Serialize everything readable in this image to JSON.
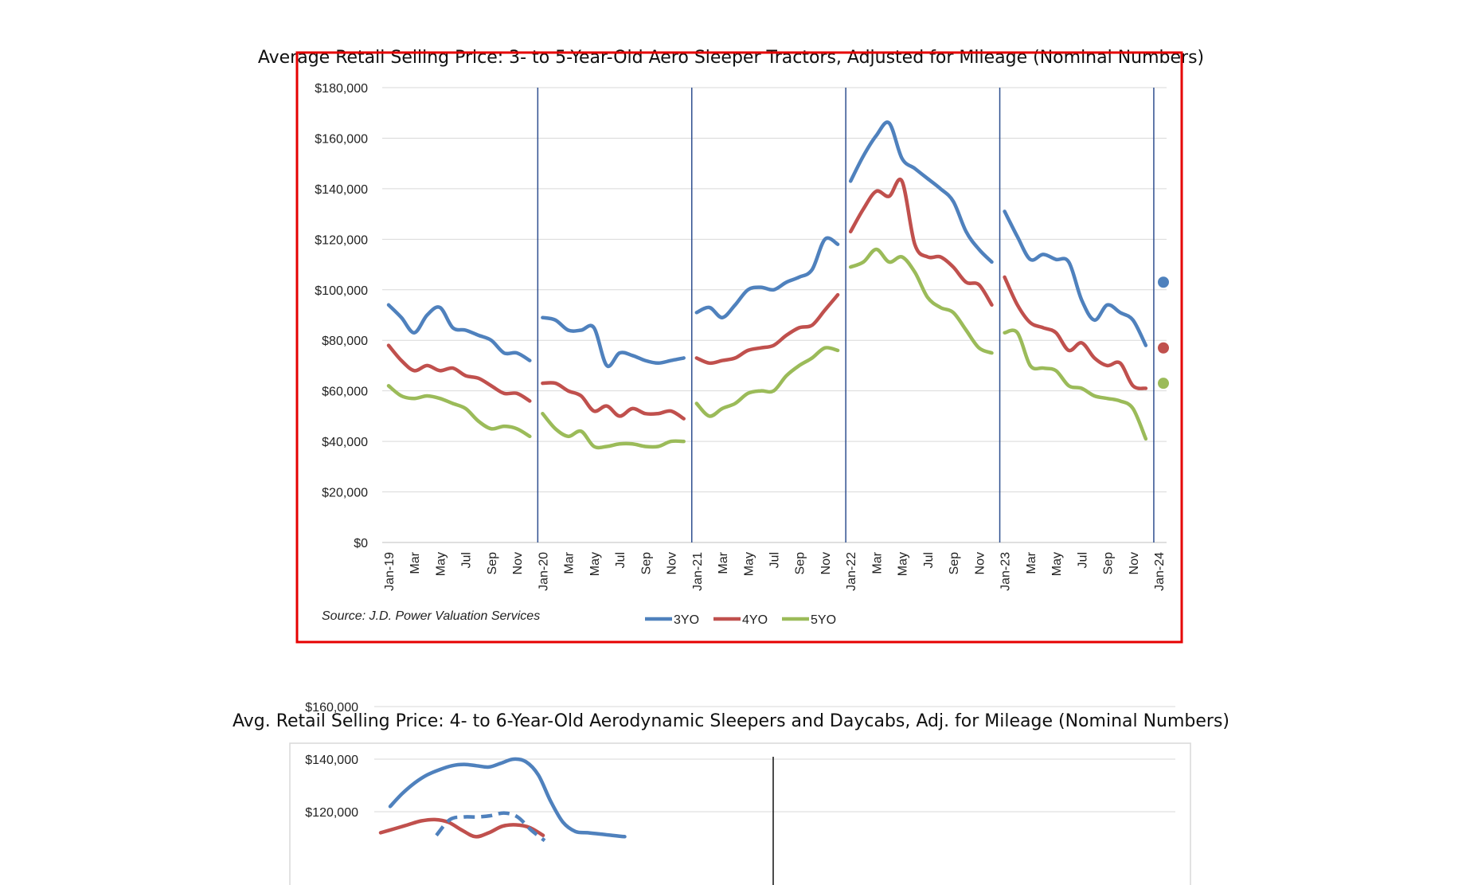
{
  "titles": {
    "chart1": "Average Retail Selling Price: 3- to 5-Year-Old Aero Sleeper Tractors, Adjusted for Mileage (Nominal Numbers)",
    "chart2": "Avg. Retail Selling Price: 4- to 6-Year-Old Aerodynamic Sleepers and Daycabs, Adj. for Mileage (Nominal Numbers)"
  },
  "colors": {
    "s3": "#4F81BD",
    "s4": "#C0504D",
    "s5": "#9BBB59",
    "frame": "#E60000",
    "divider": "#2F4F8F"
  },
  "chart_data": [
    {
      "type": "line",
      "title": "Average Retail Selling Price: 3- to 5-Year-Old Aero Sleeper Tractors, Adjusted for Mileage (Nominal Numbers)",
      "source": "Source: J.D. Power Valuation Services",
      "ylim": [
        0,
        180000
      ],
      "y_ticks": [
        "$0",
        "$20,000",
        "$40,000",
        "$60,000",
        "$80,000",
        "$100,000",
        "$120,000",
        "$140,000",
        "$160,000",
        "$180,000"
      ],
      "x_ticks": [
        "Jan-19",
        "Mar",
        "May",
        "Jul",
        "Sep",
        "Nov",
        "Jan-20",
        "Mar",
        "May",
        "Jul",
        "Sep",
        "Nov",
        "Jan-21",
        "Mar",
        "May",
        "Jul",
        "Sep",
        "Nov",
        "Jan-22",
        "Mar",
        "May",
        "Jul",
        "Sep",
        "Nov",
        "Jan-23",
        "Mar",
        "May",
        "Jul",
        "Sep",
        "Nov",
        "Jan-24"
      ],
      "grid": true,
      "legend": "bottom",
      "series": [
        {
          "name": "3YO",
          "values": [
            94000,
            89000,
            83000,
            90000,
            93000,
            85000,
            84000,
            82000,
            80000,
            75000,
            75000,
            72000,
            89000,
            88000,
            84000,
            84000,
            85000,
            70000,
            75000,
            74000,
            72000,
            71000,
            72000,
            73000,
            91000,
            93000,
            89000,
            94000,
            100000,
            101000,
            100000,
            103000,
            105000,
            108000,
            120000,
            118000,
            143000,
            153000,
            161000,
            166000,
            152000,
            148000,
            144000,
            140000,
            135000,
            123000,
            116000,
            111000,
            131000,
            121000,
            112000,
            114000,
            112000,
            111000,
            96000,
            88000,
            94000,
            91000,
            88000,
            78000,
            103000
          ]
        },
        {
          "name": "4YO",
          "values": [
            78000,
            72000,
            68000,
            70000,
            68000,
            69000,
            66000,
            65000,
            62000,
            59000,
            59000,
            56000,
            63000,
            63000,
            60000,
            58000,
            52000,
            54000,
            50000,
            53000,
            51000,
            51000,
            52000,
            49000,
            73000,
            71000,
            72000,
            73000,
            76000,
            77000,
            78000,
            82000,
            85000,
            86000,
            92000,
            98000,
            123000,
            132000,
            139000,
            137000,
            143000,
            118000,
            113000,
            113000,
            109000,
            103000,
            102000,
            94000,
            105000,
            94000,
            87000,
            85000,
            83000,
            76000,
            79000,
            73000,
            70000,
            71000,
            62000,
            61000,
            77000
          ]
        },
        {
          "name": "5YO",
          "values": [
            62000,
            58000,
            57000,
            58000,
            57000,
            55000,
            53000,
            48000,
            45000,
            46000,
            45000,
            42000,
            51000,
            45000,
            42000,
            44000,
            38000,
            38000,
            39000,
            39000,
            38000,
            38000,
            40000,
            40000,
            55000,
            50000,
            53000,
            55000,
            59000,
            60000,
            60000,
            66000,
            70000,
            73000,
            77000,
            76000,
            109000,
            111000,
            116000,
            111000,
            113000,
            107000,
            97000,
            93000,
            91000,
            84000,
            77000,
            75000,
            83000,
            83000,
            70000,
            69000,
            68000,
            62000,
            61000,
            58000,
            57000,
            56000,
            53000,
            41000,
            63000
          ]
        }
      ]
    },
    {
      "type": "line",
      "title": "Avg. Retail Selling Price: 4- to 6-Year-Old Aerodynamic Sleepers and Daycabs, Adj. for Mileage (Nominal Numbers)",
      "y_ticks": [
        "$120,000",
        "$140,000",
        "$160,000"
      ],
      "ylim": [
        110000,
        160000
      ],
      "grid": true,
      "series": [
        {
          "values": [
            122000,
            127000,
            131000,
            134000,
            136000,
            137500,
            138000,
            137500,
            137000,
            138500,
            140000,
            139000,
            134000,
            124000,
            116000,
            112500,
            112000,
            111500,
            111000,
            110500
          ]
        },
        {
          "values": [
            112000,
            113500,
            115000,
            116500,
            117000,
            116000,
            113000,
            110500,
            112000,
            114500,
            115000,
            114000,
            111000
          ]
        },
        {
          "values": [
            111000,
            117000,
            118000,
            118000,
            118500,
            119500,
            118000,
            113000,
            109000
          ]
        }
      ]
    }
  ]
}
